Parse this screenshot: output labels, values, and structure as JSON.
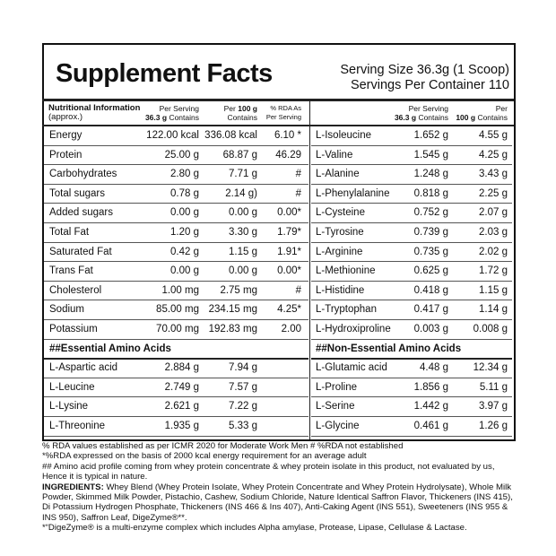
{
  "header": {
    "title": "Supplement Facts",
    "serving_size": "Serving Size  36.3g (1 Scoop)",
    "servings_per_container": "Servings Per Container 110"
  },
  "columns_left": {
    "name": [
      "Nutritional Information",
      "(approx.)"
    ],
    "per_serving": [
      "Per Serving",
      "36.3 g",
      "Contains"
    ],
    "per_100g": [
      "Per",
      "100 g",
      "Contains"
    ],
    "rda": [
      "% RDA As",
      "Per Serving"
    ]
  },
  "columns_right": {
    "per_serving": [
      "Per Serving",
      "36.3 g",
      "Contains"
    ],
    "per_100g": [
      "Per",
      "100 g",
      "Contains"
    ]
  },
  "left": {
    "rows": [
      [
        "Energy",
        "122.00 kcal",
        "336.08 kcal",
        "6.10 *"
      ],
      [
        "Protein",
        "25.00 g",
        "68.87 g",
        "46.29"
      ],
      [
        "Carbohydrates",
        "2.80 g",
        "7.71 g",
        "#"
      ],
      [
        "Total sugars",
        "0.78 g",
        "2.14 g)",
        "#"
      ],
      [
        "Added sugars",
        "0.00 g",
        "0.00 g",
        "0.00*"
      ],
      [
        "Total Fat",
        "1.20 g",
        "3.30 g",
        "1.79*"
      ],
      [
        "Saturated Fat",
        "0.42 g",
        "1.15 g",
        "1.91*"
      ],
      [
        "Trans Fat",
        "0.00 g",
        "0.00 g",
        "0.00*"
      ],
      [
        "Cholesterol",
        "1.00 mg",
        "2.75 mg",
        "#"
      ],
      [
        "Sodium",
        "85.00 mg",
        "234.15 mg",
        "4.25*"
      ],
      [
        "Potassium",
        "70.00 mg",
        "192.83 mg",
        "2.00"
      ]
    ],
    "section": "##Essential Amino Acids",
    "section_rows": [
      [
        "L-Aspartic acid",
        "2.884 g",
        "7.94 g"
      ],
      [
        "L-Leucine",
        "2.749 g",
        "7.57 g"
      ],
      [
        "L-Lysine",
        "2.621 g",
        "7.22 g"
      ],
      [
        "L-Threonine",
        "1.935 g",
        "5.33 g"
      ]
    ]
  },
  "right": {
    "rows": [
      [
        "L-Isoleucine",
        "1.652 g",
        "4.55 g"
      ],
      [
        "L-Valine",
        "1.545 g",
        "4.25 g"
      ],
      [
        "L-Alanine",
        "1.248 g",
        "3.43 g"
      ],
      [
        "L-Phenylalanine",
        "0.818 g",
        "2.25 g"
      ],
      [
        "L-Cysteine",
        "0.752 g",
        "2.07 g"
      ],
      [
        "L-Tyrosine",
        "0.739 g",
        "2.03 g"
      ],
      [
        "L-Arginine",
        "0.735 g",
        "2.02 g"
      ],
      [
        "L-Methionine",
        "0.625 g",
        "1.72 g"
      ],
      [
        "L-Histidine",
        "0.418 g",
        "1.15 g"
      ],
      [
        "L-Tryptophan",
        "0.417 g",
        "1.14 g"
      ],
      [
        "L-Hydroxiproline",
        "0.003 g",
        "0.008 g"
      ]
    ],
    "section": "##Non-Essential Amino Acids",
    "section_rows": [
      [
        "L-Glutamic acid",
        "4.48 g",
        "12.34 g"
      ],
      [
        "L-Proline",
        "1.856 g",
        "5.11 g"
      ],
      [
        "L-Serine",
        "1.442 g",
        "3.97 g"
      ],
      [
        "L-Glycine",
        "0.461 g",
        "1.26 g"
      ]
    ]
  },
  "footnotes": [
    "% RDA values established as per ICMR 2020 for Moderate Work Men  # %RDA not established",
    "*%RDA expressed on the basis of 2000 kcal energy requirement for an average adult",
    "## Amino acid profile coming from whey protein concentrate & whey protein isolate in this product, not evaluated by us, Hence it is typical in nature."
  ],
  "ingredients": {
    "label": "INGREDIENTS:",
    "text": "Whey Blend (Whey Protein Isolate, Whey Protein Concentrate and Whey Protein Hydrolysate), Whole Milk Powder, Skimmed Milk Powder, Pistachio, Cashew, Sodium Chloride, Nature Identical Saffron Flavor, Thickeners (INS 415), Di Potassium Hydrogen Phosphate, Thickeners (INS 466 & Ins 407), Anti-Caking Agent (INS 551), Sweeteners (INS 955 & INS 950), Saffron Leaf, DigeZyme®**."
  },
  "digezyme_note": "*“DigeZyme® is a multi-enzyme complex which includes Alpha amylase, Protease, Lipase, Cellulase & Lactase."
}
